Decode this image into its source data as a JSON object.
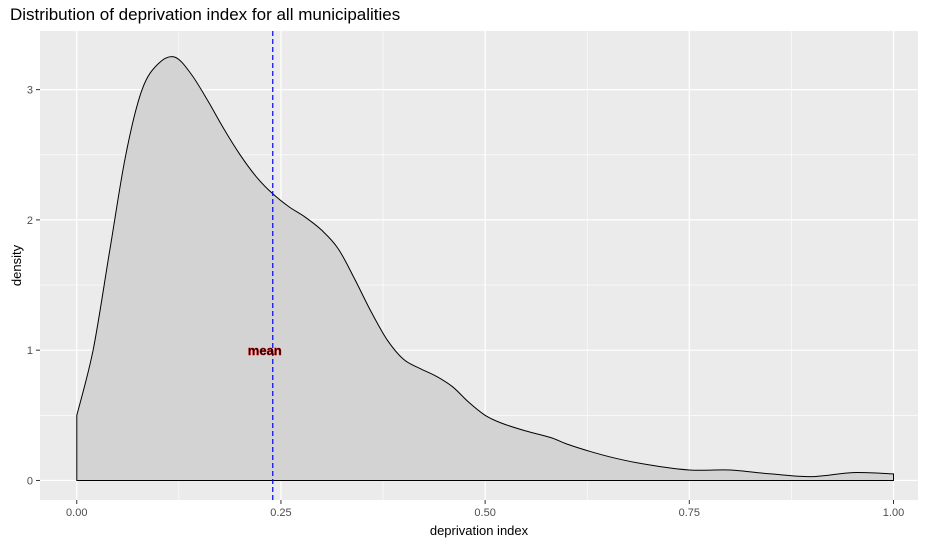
{
  "chart_data": {
    "type": "area",
    "title": "Distribution of deprivation index for all municipalities",
    "xlabel": "deprivation index",
    "ylabel": "density",
    "xlim": [
      -0.045,
      1.03
    ],
    "ylim": [
      -0.15,
      3.45
    ],
    "x_ticks": [
      0.0,
      0.25,
      0.5,
      0.75,
      1.0
    ],
    "x_tick_labels": [
      "0.00",
      "0.25",
      "0.50",
      "0.75",
      "1.00"
    ],
    "y_ticks": [
      0,
      1,
      2,
      3
    ],
    "y_tick_labels": [
      "0",
      "1",
      "2",
      "3"
    ],
    "grid": true,
    "fill_color": "#d3d3d3",
    "line_color": "#000000",
    "panel_color": "#ebebeb",
    "density_curve": {
      "x": [
        0.0,
        0.0,
        0.02,
        0.04,
        0.06,
        0.08,
        0.1,
        0.12,
        0.14,
        0.16,
        0.18,
        0.2,
        0.22,
        0.24,
        0.26,
        0.28,
        0.3,
        0.32,
        0.34,
        0.36,
        0.38,
        0.4,
        0.42,
        0.44,
        0.46,
        0.48,
        0.5,
        0.52,
        0.55,
        0.58,
        0.6,
        0.63,
        0.66,
        0.7,
        0.75,
        0.8,
        0.85,
        0.9,
        0.95,
        1.0,
        1.0
      ],
      "y": [
        0.0,
        0.5,
        1.0,
        1.75,
        2.5,
        3.0,
        3.2,
        3.25,
        3.12,
        2.92,
        2.7,
        2.5,
        2.33,
        2.2,
        2.1,
        2.02,
        1.92,
        1.78,
        1.55,
        1.3,
        1.08,
        0.93,
        0.86,
        0.8,
        0.72,
        0.6,
        0.5,
        0.44,
        0.38,
        0.33,
        0.28,
        0.22,
        0.17,
        0.12,
        0.08,
        0.08,
        0.05,
        0.03,
        0.06,
        0.05,
        0.0
      ]
    },
    "mean_line": {
      "x": 0.24,
      "color": "#0000ff",
      "style": "dashed"
    },
    "annotation": {
      "text": "mean",
      "x": 0.24,
      "y": 1.0,
      "color": "#c00000"
    }
  }
}
